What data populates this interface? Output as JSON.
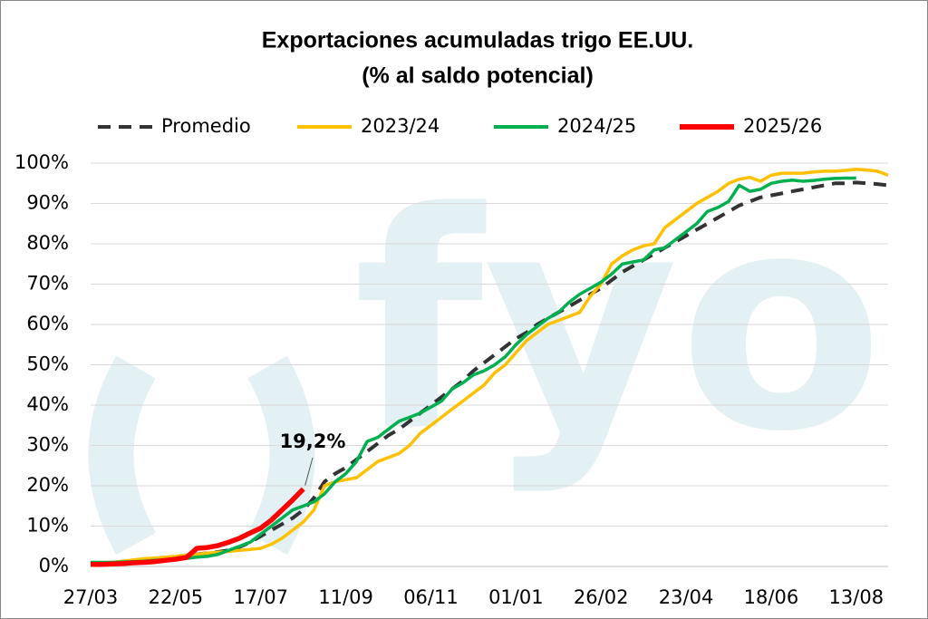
{
  "chart_data": {
    "type": "line",
    "title": "Exportaciones acumuladas trigo EE.UU.",
    "subtitle": "(% al saldo potencial)",
    "watermark": "fyo",
    "annotation": "19,2%",
    "categories": [
      "27/03",
      null,
      null,
      null,
      null,
      null,
      null,
      null,
      "22/05",
      null,
      null,
      null,
      null,
      null,
      null,
      null,
      "17/07",
      null,
      null,
      null,
      null,
      null,
      null,
      null,
      "11/09",
      null,
      null,
      null,
      null,
      null,
      null,
      null,
      "06/11",
      null,
      null,
      null,
      null,
      null,
      null,
      null,
      "01/01",
      null,
      null,
      null,
      null,
      null,
      null,
      null,
      "26/02",
      null,
      null,
      null,
      null,
      null,
      null,
      null,
      "23/04",
      null,
      null,
      null,
      null,
      null,
      null,
      null,
      "18/06",
      null,
      null,
      null,
      null,
      null,
      null,
      null,
      "13/08",
      null,
      null,
      null
    ],
    "ylim": [
      0,
      100
    ],
    "yticks": [
      {
        "value": 0,
        "label": "0%"
      },
      {
        "value": 10,
        "label": "10%"
      },
      {
        "value": 20,
        "label": "20%"
      },
      {
        "value": 30,
        "label": "30%"
      },
      {
        "value": 40,
        "label": "40%"
      },
      {
        "value": 50,
        "label": "50%"
      },
      {
        "value": 60,
        "label": "60%"
      },
      {
        "value": 70,
        "label": "70%"
      },
      {
        "value": 80,
        "label": "80%"
      },
      {
        "value": 90,
        "label": "90%"
      },
      {
        "value": 100,
        "label": "100%"
      }
    ],
    "grid": true,
    "legend": "top",
    "series": [
      {
        "name": "Promedio",
        "color": "#333333",
        "dashed": true,
        "values": [
          0.5,
          0.7,
          0.9,
          1.1,
          1.3,
          1.5,
          1.8,
          2.0,
          2.3,
          2.6,
          3.0,
          3.3,
          3.6,
          4.0,
          4.8,
          6.0,
          7.5,
          9.0,
          10.5,
          12.0,
          14.0,
          17.0,
          21.0,
          23.0,
          24.5,
          26.5,
          28.5,
          30.5,
          32.5,
          34.0,
          36.0,
          38.0,
          40.0,
          42.0,
          44.0,
          46.0,
          48.5,
          50.5,
          52.5,
          54.5,
          56.5,
          58.0,
          60.0,
          61.5,
          63.0,
          64.5,
          66.0,
          67.5,
          69.0,
          71.0,
          73.0,
          74.5,
          76.0,
          77.5,
          79.0,
          80.5,
          82.0,
          83.5,
          85.0,
          86.5,
          88.0,
          89.5,
          90.5,
          91.5,
          92.0,
          92.5,
          93.0,
          93.5,
          94.0,
          94.5,
          95.0,
          95.0,
          95.2,
          95.0,
          94.8,
          94.5
        ]
      },
      {
        "name": "2023/24",
        "color": "#ffc000",
        "values": [
          0.5,
          0.8,
          1.0,
          1.3,
          1.6,
          1.9,
          2.1,
          2.3,
          2.5,
          2.8,
          3.0,
          3.3,
          3.5,
          3.7,
          4.0,
          4.2,
          4.5,
          5.5,
          7,
          9,
          11,
          14,
          20,
          21,
          21.5,
          22,
          24,
          26,
          27,
          28,
          30,
          33,
          35,
          37,
          39,
          41,
          43,
          45,
          48,
          50,
          53,
          56,
          58,
          60,
          61,
          62,
          63,
          67,
          70,
          75,
          77,
          78.5,
          79.5,
          80,
          84,
          86,
          88,
          90,
          91.5,
          93,
          95,
          96,
          96.5,
          95.5,
          97,
          97.5,
          97.5,
          97.5,
          97.8,
          98,
          98,
          98.2,
          98.5,
          98.3,
          98,
          97
        ]
      },
      {
        "name": "2024/25",
        "color": "#00b050",
        "values": [
          1,
          1,
          1,
          1.1,
          1.2,
          1.3,
          1.5,
          1.6,
          1.8,
          2.0,
          2.3,
          2.5,
          3,
          4,
          5,
          6,
          8,
          10,
          12,
          14,
          15,
          16,
          18,
          21,
          23,
          26,
          31,
          32,
          34,
          36,
          37,
          38,
          39.5,
          41,
          44,
          45.5,
          47.5,
          48.5,
          50,
          52,
          55,
          57.5,
          59.5,
          61.5,
          63,
          65.5,
          67.5,
          69,
          70.5,
          72.5,
          75,
          75.5,
          76,
          78.5,
          79,
          81,
          83,
          85,
          88,
          89,
          90.5,
          94.5,
          93,
          93.5,
          95,
          95.5,
          95.8,
          95.5,
          95.7,
          96,
          96.2,
          96.3,
          96.3,
          null,
          null,
          null
        ]
      },
      {
        "name": "2025/26",
        "color": "#ff0000",
        "values": [
          0.5,
          0.5,
          0.6,
          0.7,
          0.9,
          1.0,
          1.2,
          1.5,
          1.8,
          2.2,
          4.5,
          4.7,
          5.2,
          6.0,
          7.0,
          8.3,
          9.5,
          11.5,
          14.0,
          16.5,
          19.2,
          null,
          null,
          null,
          null,
          null,
          null,
          null,
          null,
          null,
          null,
          null,
          null,
          null,
          null,
          null,
          null,
          null,
          null,
          null,
          null,
          null,
          null,
          null,
          null,
          null,
          null,
          null,
          null,
          null,
          null,
          null,
          null,
          null,
          null,
          null,
          null,
          null,
          null,
          null,
          null,
          null,
          null,
          null,
          null,
          null,
          null,
          null,
          null,
          null,
          null,
          null,
          null,
          null,
          null,
          null
        ]
      }
    ]
  }
}
